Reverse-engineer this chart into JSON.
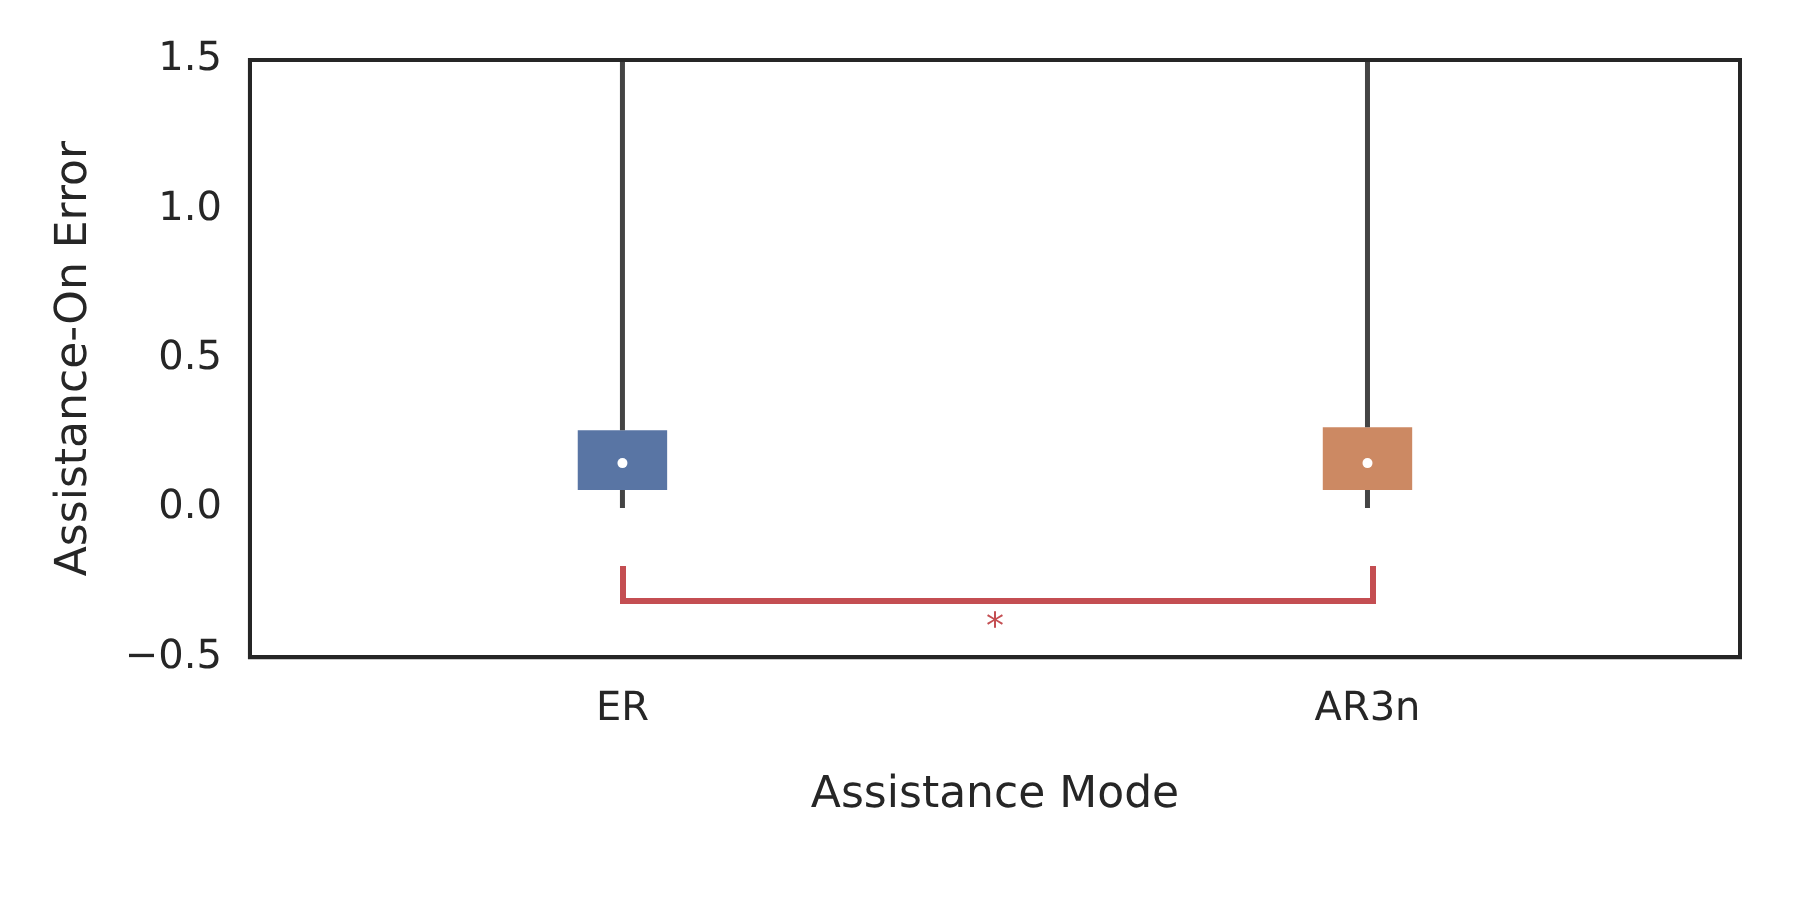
{
  "chart_data": {
    "type": "box",
    "xlabel": "Assistance Mode",
    "ylabel": "Assistance-On Error",
    "categories": [
      "ER",
      "AR3n"
    ],
    "boxes": [
      {
        "low": 0.0,
        "q1": 0.06,
        "median": 0.15,
        "q3": 0.26,
        "high": 1.5
      },
      {
        "low": 0.0,
        "q1": 0.06,
        "median": 0.15,
        "q3": 0.27,
        "high": 1.5
      }
    ],
    "colors": [
      "#5975a4",
      "#cc8963"
    ],
    "ylim": [
      -0.5,
      1.5
    ],
    "yticks": [
      {
        "value": -0.5,
        "label": "−0.5"
      },
      {
        "value": 0,
        "label": "0.0"
      },
      {
        "value": 0.5,
        "label": "0.5"
      },
      {
        "value": 1,
        "label": "1.0"
      },
      {
        "value": 1.5,
        "label": "1.5"
      }
    ],
    "grid": false,
    "legend": false,
    "annotations": [
      "*"
    ]
  }
}
